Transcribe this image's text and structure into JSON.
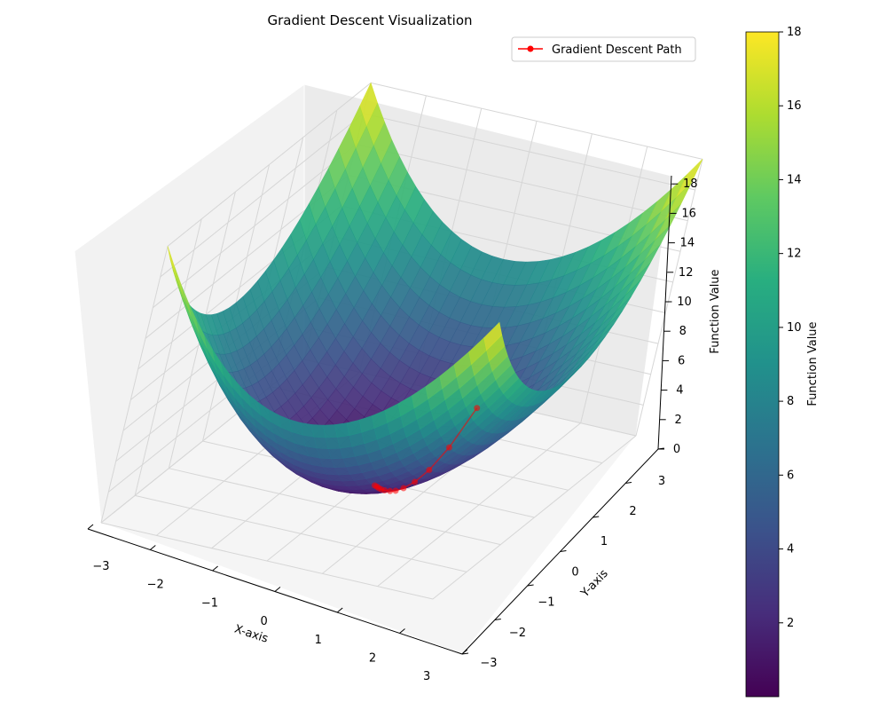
{
  "chart_data": {
    "type": "surface3d",
    "title": "Gradient Descent Visualization",
    "function": "x^2 + y^2",
    "xlabel": "X-axis",
    "ylabel": "Y-axis",
    "zlabel": "Function Value",
    "xlim": [
      -3,
      3
    ],
    "ylim": [
      -3,
      3
    ],
    "zlim": [
      0,
      18
    ],
    "x_ticks": [
      "−3",
      "−2",
      "−1",
      "0",
      "1",
      "2",
      "3"
    ],
    "y_ticks": [
      "−3",
      "−2",
      "−1",
      "0",
      "1",
      "2",
      "3"
    ],
    "z_ticks": [
      "0",
      "2",
      "4",
      "6",
      "8",
      "10",
      "12",
      "14",
      "16",
      "18"
    ],
    "grid": true,
    "colormap": "viridis",
    "colorbar": {
      "label": "Function Value",
      "range": [
        0,
        18
      ],
      "ticks": [
        "2",
        "4",
        "6",
        "8",
        "10",
        "12",
        "14",
        "16",
        "18"
      ]
    },
    "legend": {
      "position": "top-right",
      "entries": [
        "Gradient Descent Path"
      ]
    },
    "path": {
      "name": "Gradient Descent Path",
      "color": "#ff0000",
      "points": [
        {
          "x": 2.0,
          "y": 2.5,
          "z": 10.25
        },
        {
          "x": 1.6,
          "y": 2.0,
          "z": 6.56
        },
        {
          "x": 1.28,
          "y": 1.6,
          "z": 4.2
        },
        {
          "x": 1.02,
          "y": 1.28,
          "z": 2.69
        },
        {
          "x": 0.82,
          "y": 1.02,
          "z": 1.72
        },
        {
          "x": 0.66,
          "y": 0.82,
          "z": 1.1
        },
        {
          "x": 0.52,
          "y": 0.66,
          "z": 0.7
        },
        {
          "x": 0.42,
          "y": 0.52,
          "z": 0.45
        },
        {
          "x": 0.34,
          "y": 0.42,
          "z": 0.29
        },
        {
          "x": 0.27,
          "y": 0.34,
          "z": 0.18
        },
        {
          "x": 0.21,
          "y": 0.27,
          "z": 0.12
        },
        {
          "x": 0.17,
          "y": 0.21,
          "z": 0.07
        }
      ]
    }
  }
}
